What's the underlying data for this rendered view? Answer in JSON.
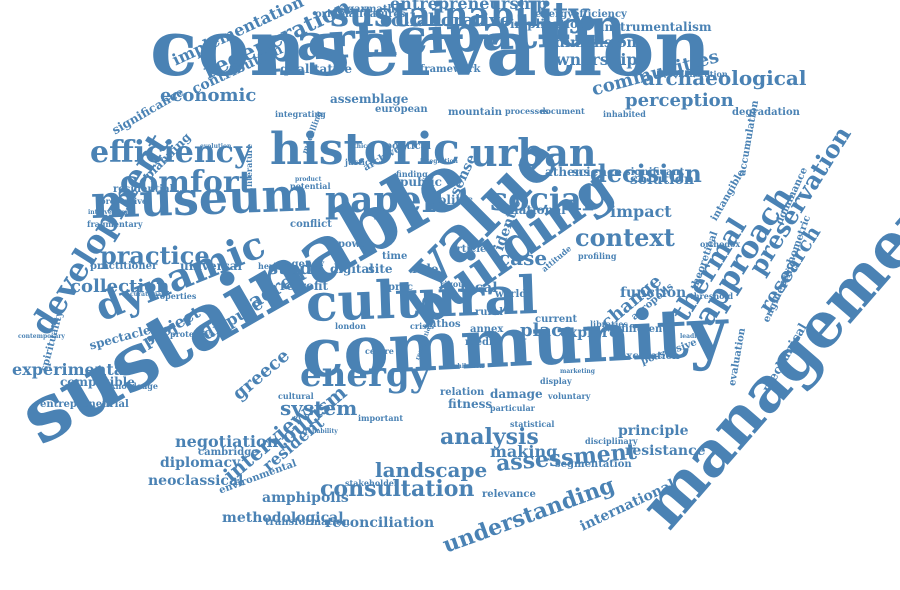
{
  "cloud": {
    "color": "#4a82b4",
    "background": "#ffffff",
    "words": [
      "conservation",
      "sustainable",
      "community",
      "management",
      "museum",
      "cultural",
      "building",
      "value",
      "participation",
      "historic",
      "urban",
      "sustainability",
      "dynamic",
      "efficiency",
      "comfort",
      "social",
      "paper",
      "energy",
      "development",
      "practice",
      "approach",
      "thermal",
      "preservation",
      "archaeological",
      "research",
      "decision",
      "context",
      "landscape",
      "consultation",
      "assessment",
      "understanding",
      "analysis",
      "experimental",
      "collection",
      "regeneration",
      "economic",
      "case",
      "tourism",
      "greece",
      "interview",
      "resident",
      "project",
      "dispute",
      "sacred",
      "study",
      "entrepreneurship",
      "collaborative",
      "implementation",
      "communities",
      "framework",
      "ownership",
      "dimension",
      "instrumentalism",
      "implication",
      "perception",
      "solution",
      "impact",
      "function",
      "change",
      "place",
      "explore",
      "local",
      "national",
      "identity",
      "sense",
      "public",
      "politic",
      "principle",
      "resistance",
      "making",
      "negotiation",
      "diplomacy",
      "neoclassical",
      "amphipolis",
      "methodological",
      "reconciliation",
      "international",
      "relevance",
      "segmentation",
      "cambridge",
      "compatible",
      "entrepreneurial",
      "spectacle",
      "planning",
      "significance",
      "contribution",
      "originalfeatures",
      "sagarmatha",
      "energyefficiency",
      "qualitative",
      "assemblage",
      "integrating",
      "european",
      "mountain",
      "processes",
      "document",
      "degradation",
      "inhabited",
      "collaboration",
      "accumulation",
      "dominance",
      "psychometric",
      "engineering",
      "evaluation",
      "mechanical",
      "possessive",
      "excavation",
      "different",
      "current",
      "annex",
      "athos",
      "media",
      "site",
      "role",
      "proc",
      "digital",
      "power",
      "agency",
      "universal",
      "practitioner",
      "residential",
      "preventive",
      "fragmentary",
      "intervention",
      "properties",
      "protective",
      "spirituality",
      "knowledge",
      "fitness",
      "damage",
      "particular",
      "voluntary",
      "display",
      "relation",
      "system",
      "cultural",
      "rural",
      "world",
      "article",
      "conflict",
      "potential",
      "product",
      "political",
      "athens",
      "science",
      "significant",
      "acropolis",
      "disciplinary",
      "statistical",
      "transformation",
      "stakeholder",
      "environmental",
      "reliability",
      "important",
      "threshold",
      "orthodox",
      "intangible",
      "theoretical",
      "libraries",
      "profiling",
      "attitude",
      "heritage",
      "retrofit",
      "time",
      "crisis",
      "london",
      "centre",
      "recognition",
      "rigour",
      "finding",
      "justice",
      "archive",
      "modelling",
      "curatorial",
      "contemporary",
      "evolution",
      "literature",
      "ethical",
      "integration",
      "leading",
      "exhibition",
      "marketing"
    ]
  }
}
